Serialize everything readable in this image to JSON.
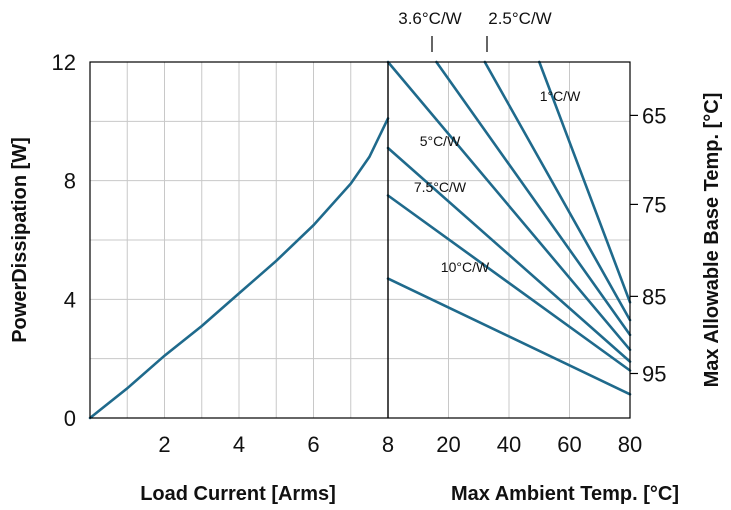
{
  "chart_data": [
    {
      "type": "line",
      "title": "",
      "xlabel": "Load Current [Arms]",
      "ylabel": "PowerDissipation [W]",
      "xlim": [
        0,
        8
      ],
      "ylim": [
        0,
        12
      ],
      "x_ticks": [
        "2",
        "4",
        "6",
        "8"
      ],
      "y_ticks": [
        "0",
        "4",
        "8",
        "12"
      ],
      "grid": true,
      "series": [
        {
          "x": [
            0,
            1,
            2,
            3,
            4,
            5,
            6,
            7,
            7.5,
            8
          ],
          "y": [
            0,
            1.0,
            2.1,
            3.1,
            4.2,
            5.3,
            6.5,
            7.9,
            8.8,
            10.1
          ]
        }
      ]
    },
    {
      "type": "line",
      "title": "",
      "xlabel": "Max Ambient Temp. [°C]",
      "ylabel": "Max Allowable Base Temp. [°C]",
      "xlim": [
        0,
        80
      ],
      "ylim": [
        0,
        12
      ],
      "x_ticks": [
        "20",
        "40",
        "60",
        "80"
      ],
      "right_ticks": [
        "65",
        "75",
        "85",
        "95"
      ],
      "grid": true,
      "series": [
        {
          "name": "1°C/W",
          "x": [
            50,
            80
          ],
          "y": [
            12,
            3.9
          ]
        },
        {
          "name": "2.5°C/W",
          "x": [
            32,
            80
          ],
          "y": [
            12,
            3.3
          ]
        },
        {
          "name": "3.6°C/W",
          "x": [
            16,
            80
          ],
          "y": [
            12,
            2.8
          ]
        },
        {
          "name": "5°C/W",
          "x": [
            0,
            80
          ],
          "y": [
            12,
            2.3
          ]
        },
        {
          "name": "7.5°C/W",
          "x": [
            0,
            80
          ],
          "y": [
            9.1,
            1.9
          ]
        },
        {
          "name": "",
          "x": [
            0,
            80
          ],
          "y": [
            7.5,
            1.6
          ]
        },
        {
          "name": "10°C/W",
          "x": [
            0,
            80
          ],
          "y": [
            4.7,
            0.8
          ]
        }
      ]
    }
  ]
}
